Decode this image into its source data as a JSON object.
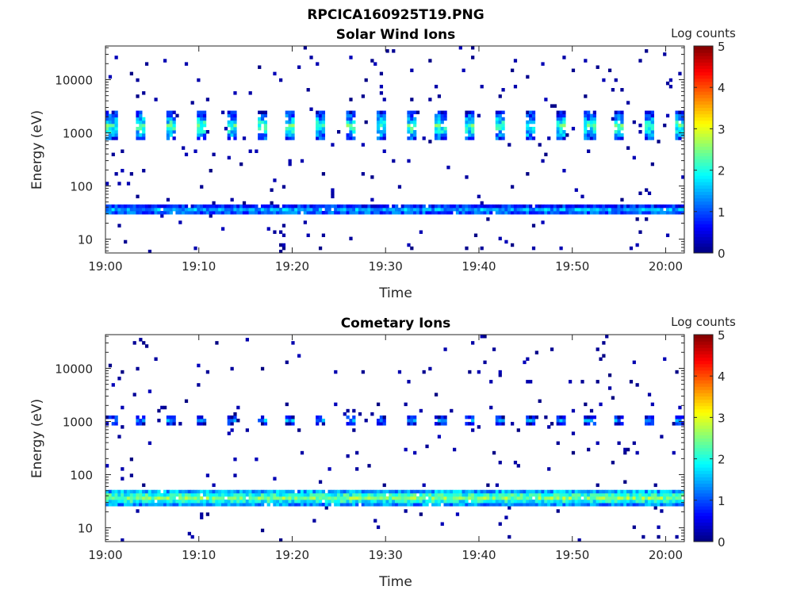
{
  "figure_title": "RPCICA160925T19.PNG",
  "colors": {
    "background": "#ffffff",
    "axis": "#262626",
    "colormap": "jet",
    "colormap_stops": [
      "#00007f",
      "#0000ff",
      "#007fff",
      "#00ffff",
      "#7fff7f",
      "#ffff00",
      "#ff7f00",
      "#ff0000",
      "#7f0000"
    ]
  },
  "chart_data": [
    {
      "type": "heatmap",
      "title": "Solar Wind Ions",
      "xlabel": "Time",
      "ylabel": "Energy (eV)",
      "x_ticks": [
        "19:00",
        "19:10",
        "19:20",
        "19:30",
        "19:40",
        "19:50",
        "20:00"
      ],
      "x_range": [
        "19:00",
        "20:02"
      ],
      "y_scale": "log",
      "y_range": [
        5.5,
        43000
      ],
      "y_ticks": [
        "10",
        "100",
        "1000",
        "10000"
      ],
      "colorbar": {
        "label": "Log counts",
        "range": [
          0,
          5
        ],
        "ticks": [
          "0",
          "1",
          "2",
          "3",
          "4",
          "5"
        ]
      },
      "features": [
        {
          "description": "main band",
          "energy_range_eV": [
            28,
            45
          ],
          "time_range": [
            "19:00",
            "20:02"
          ],
          "log_counts_typical": 1.2,
          "log_counts_max": 2.0
        },
        {
          "description": "pulsed peak",
          "energy_range_eV": [
            700,
            2500
          ],
          "period_minutes": 3.2,
          "log_counts_typical": 1.5,
          "log_counts_max": 2.8
        },
        {
          "description": "sparse background",
          "energy_range_eV": [
            6,
            40000
          ],
          "log_counts_typical": 0.3
        }
      ]
    },
    {
      "type": "heatmap",
      "title": "Cometary Ions",
      "xlabel": "Time",
      "ylabel": "Energy (eV)",
      "x_ticks": [
        "19:00",
        "19:10",
        "19:20",
        "19:30",
        "19:40",
        "19:50",
        "20:00"
      ],
      "x_range": [
        "19:00",
        "20:02"
      ],
      "y_scale": "log",
      "y_range": [
        5.5,
        43000
      ],
      "y_ticks": [
        "10",
        "100",
        "1000",
        "10000"
      ],
      "colorbar": {
        "label": "Log counts",
        "range": [
          0,
          5
        ],
        "ticks": [
          "0",
          "1",
          "2",
          "3",
          "4",
          "5"
        ]
      },
      "features": [
        {
          "description": "main band",
          "energy_range_eV": [
            25,
            55
          ],
          "time_range": [
            "19:00",
            "20:02"
          ],
          "log_counts_typical": 2.2,
          "log_counts_max": 3.0
        },
        {
          "description": "pulsed peak",
          "energy_range_eV": [
            850,
            1300
          ],
          "period_minutes": 3.2,
          "log_counts_typical": 1.0,
          "log_counts_max": 1.8
        },
        {
          "description": "sparse background",
          "energy_range_eV": [
            8,
            30000
          ],
          "log_counts_typical": 0.3
        }
      ]
    }
  ]
}
